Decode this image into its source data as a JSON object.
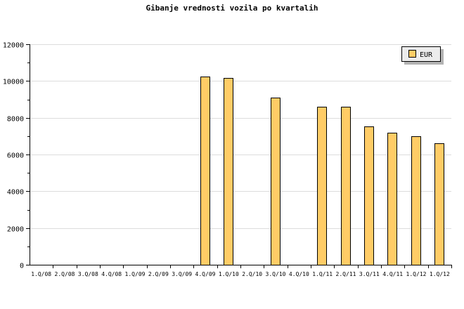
{
  "chart_data": {
    "type": "bar",
    "title": "Gibanje vrednosti vozila po kvartalih",
    "xlabel": "",
    "ylabel": "",
    "ylim": [
      0,
      12000
    ],
    "yticks": [
      0,
      2000,
      4000,
      6000,
      8000,
      10000,
      12000
    ],
    "grid": true,
    "legend_position": "top-right",
    "categories": [
      "1.Q/08",
      "2.Q/08",
      "3.Q/08",
      "4.Q/08",
      "1.Q/09",
      "2.Q/09",
      "3.Q/09",
      "4.Q/09",
      "1.Q/10",
      "2.Q/10",
      "3.Q/10",
      "4.Q/10",
      "1.Q/11",
      "2.Q/11",
      "3.Q/11",
      "4.Q/11",
      "1.Q/12",
      "1.Q/12"
    ],
    "series": [
      {
        "name": "EUR",
        "color": "#ffcc66",
        "values": [
          0,
          0,
          0,
          0,
          0,
          0,
          0,
          10240,
          10150,
          0,
          9110,
          0,
          8610,
          8610,
          7540,
          7200,
          7010,
          6620
        ]
      }
    ]
  }
}
